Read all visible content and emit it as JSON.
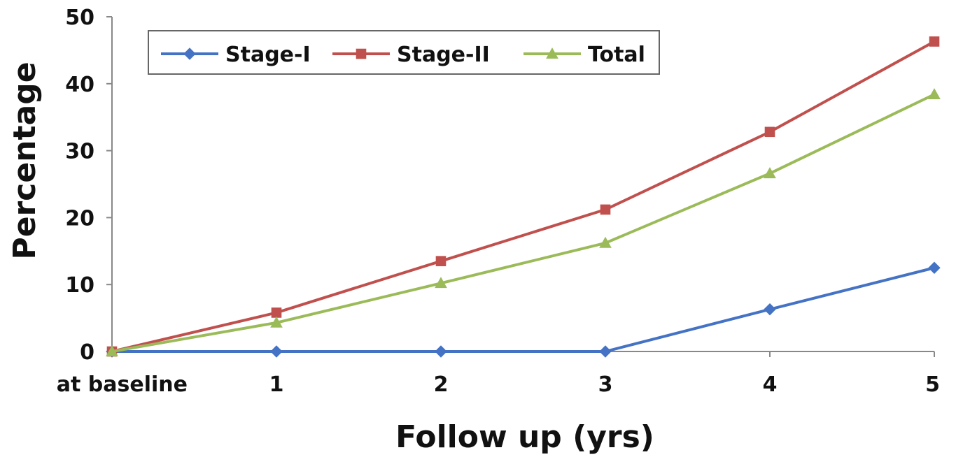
{
  "chart_data": {
    "type": "line",
    "x": [
      "at baseline",
      "1",
      "2",
      "3",
      "4",
      "5"
    ],
    "xlabel": "Follow up (yrs)",
    "ylabel": "Percentage",
    "ylim": [
      0,
      50
    ],
    "yticks": [
      0,
      10,
      20,
      30,
      40,
      50
    ],
    "grid": false,
    "legend_position": "top-left",
    "series": [
      {
        "name": "Stage-I",
        "color": "#4472C4",
        "marker": "diamond",
        "values": [
          0,
          0,
          0,
          0,
          6.3,
          12.5
        ]
      },
      {
        "name": "Stage-II",
        "color": "#C0504D",
        "marker": "square",
        "values": [
          0,
          5.8,
          13.5,
          21.2,
          32.8,
          46.3
        ]
      },
      {
        "name": "Total",
        "color": "#9BBB59",
        "marker": "triangle",
        "values": [
          0,
          4.3,
          10.2,
          16.2,
          26.6,
          38.4
        ]
      }
    ]
  }
}
